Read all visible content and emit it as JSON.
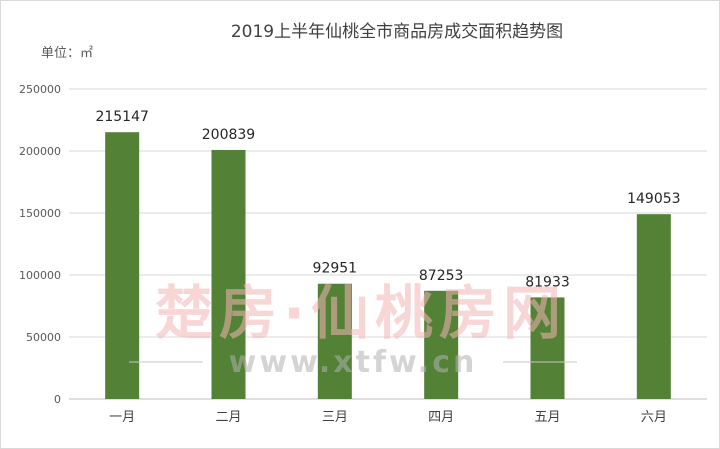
{
  "chart_data": {
    "type": "bar",
    "title": "2019上半年仙桃全市商品房成交面积趋势图",
    "unit_label": "单位：㎡",
    "categories": [
      "一月",
      "二月",
      "三月",
      "四月",
      "五月",
      "六月"
    ],
    "values": [
      215147,
      200839,
      92951,
      87253,
      81933,
      149053
    ],
    "yticks": [
      0,
      50000,
      100000,
      150000,
      200000,
      250000
    ],
    "ylim": [
      0,
      250000
    ],
    "grid": true,
    "bar_color": "#538135"
  },
  "watermark": {
    "text": "楚房·仙桃房网",
    "url": "www.xtfw.cn"
  }
}
